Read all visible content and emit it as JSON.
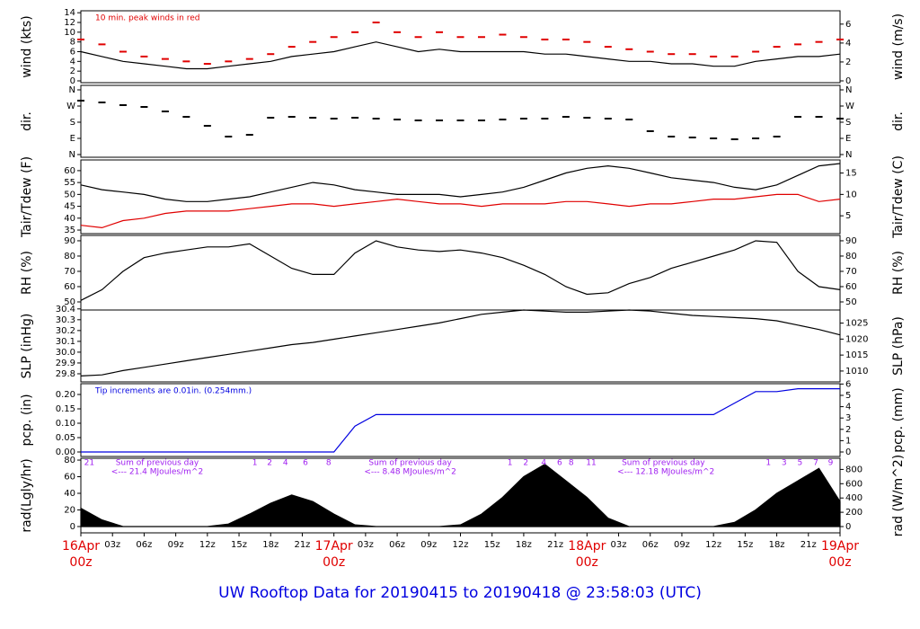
{
  "title": "UW Rooftop Data for 20190415  to  20190418 @ 23:58:03  (UTC)",
  "chart_data": [
    {
      "type": "line",
      "ylabel": "wind (kts)",
      "y2label": "wind (m/s)",
      "annotation": "10 min. peak winds in red",
      "annotation_color": "#e00000",
      "xlim": [
        0,
        72
      ],
      "x": [
        0,
        2,
        4,
        6,
        8,
        10,
        12,
        14,
        16,
        18,
        20,
        22,
        24,
        26,
        28,
        30,
        32,
        34,
        36,
        38,
        40,
        42,
        44,
        46,
        48,
        50,
        52,
        54,
        56,
        58,
        60,
        62,
        64,
        66,
        68,
        70,
        72
      ],
      "ylim": [
        -0.37,
        14.4
      ],
      "yticks": [
        0,
        2,
        4,
        6,
        8,
        10,
        12,
        14
      ],
      "y2lim": [
        -0.19,
        7.41
      ],
      "y2ticks": [
        0,
        2,
        4,
        6
      ],
      "series": [
        {
          "color": "#000000",
          "values": [
            6,
            5,
            4,
            3.5,
            3,
            2.5,
            2.5,
            3,
            3.5,
            4,
            5,
            5.5,
            6,
            7,
            8,
            7,
            6,
            6.5,
            6,
            6,
            6,
            6,
            5.5,
            5.5,
            5,
            4.5,
            4,
            4,
            3.5,
            3.5,
            3,
            3,
            4,
            4.5,
            5,
            5,
            5.5
          ]
        },
        {
          "color": "#e00000",
          "marker": "dash",
          "values": [
            8.5,
            7.5,
            6,
            5,
            4.5,
            4,
            3.5,
            4,
            4.5,
            5.5,
            7,
            8,
            9,
            10,
            12,
            10,
            9,
            10,
            9,
            9,
            9.5,
            9,
            8.5,
            8.5,
            8,
            7,
            6.5,
            6,
            5.5,
            5.5,
            5,
            5,
            6,
            7,
            7.5,
            8,
            8.5
          ]
        }
      ]
    },
    {
      "type": "scatter",
      "ylabel": "dir.",
      "y2label": "dir.",
      "xlim": [
        0,
        72
      ],
      "x": [
        0,
        2,
        4,
        6,
        8,
        10,
        12,
        14,
        16,
        18,
        20,
        22,
        24,
        26,
        28,
        30,
        32,
        34,
        36,
        38,
        40,
        42,
        44,
        46,
        48,
        50,
        52,
        54,
        56,
        58,
        60,
        62,
        64,
        66,
        68,
        70,
        72
      ],
      "ylim": [
        -15,
        385
      ],
      "yticks": [
        {
          "value": 0,
          "label": "N"
        },
        {
          "value": 90,
          "label": "E"
        },
        {
          "value": 180,
          "label": "S"
        },
        {
          "value": 270,
          "label": "W"
        },
        {
          "value": 360,
          "label": "N"
        }
      ],
      "series": [
        {
          "color": "#000000",
          "marker": "dash",
          "values": [
            300,
            290,
            275,
            265,
            240,
            210,
            160,
            100,
            110,
            205,
            210,
            205,
            200,
            205,
            200,
            195,
            190,
            190,
            190,
            190,
            195,
            200,
            200,
            210,
            205,
            200,
            195,
            130,
            100,
            95,
            90,
            85,
            90,
            100,
            210,
            210,
            200
          ]
        }
      ]
    },
    {
      "type": "line",
      "ylabel": "Tair/Tdew (F)",
      "y2label": "Tair/Tdew (C)",
      "xlim": [
        0,
        72
      ],
      "x": [
        0,
        2,
        4,
        6,
        8,
        10,
        12,
        14,
        16,
        18,
        20,
        22,
        24,
        26,
        28,
        30,
        32,
        34,
        36,
        38,
        40,
        42,
        44,
        46,
        48,
        50,
        52,
        54,
        56,
        58,
        60,
        62,
        64,
        66,
        68,
        70,
        72
      ],
      "ylim": [
        33.5,
        64.5
      ],
      "yticks": [
        35,
        40,
        45,
        50,
        55,
        60
      ],
      "y2lim": [
        0.83,
        18.06
      ],
      "y2ticks": [
        5,
        10,
        15
      ],
      "series": [
        {
          "color": "#000000",
          "values": [
            54,
            52,
            51,
            50,
            48,
            47,
            47,
            48,
            49,
            51,
            53,
            55,
            54,
            52,
            51,
            50,
            50,
            50,
            49,
            50,
            51,
            53,
            56,
            59,
            61,
            62,
            61,
            59,
            57,
            56,
            55,
            53,
            52,
            54,
            58,
            62,
            63
          ]
        },
        {
          "color": "#e00000",
          "values": [
            37,
            36,
            39,
            40,
            42,
            43,
            43,
            43,
            44,
            45,
            46,
            46,
            45,
            46,
            47,
            48,
            47,
            46,
            46,
            45,
            46,
            46,
            46,
            47,
            47,
            46,
            45,
            46,
            46,
            47,
            48,
            48,
            49,
            50,
            50,
            47,
            48
          ]
        }
      ]
    },
    {
      "type": "line",
      "ylabel": "RH (%)",
      "y2label": "RH (%)",
      "xlim": [
        0,
        72
      ],
      "x": [
        0,
        2,
        4,
        6,
        8,
        10,
        12,
        14,
        16,
        18,
        20,
        22,
        24,
        26,
        28,
        30,
        32,
        34,
        36,
        38,
        40,
        42,
        44,
        46,
        48,
        50,
        52,
        54,
        56,
        58,
        60,
        62,
        64,
        66,
        68,
        70,
        72
      ],
      "ylim": [
        44.7,
        93.5
      ],
      "yticks": [
        50,
        60,
        70,
        80,
        90
      ],
      "series": [
        {
          "color": "#000000",
          "values": [
            51,
            58,
            70,
            79,
            82,
            84,
            86,
            86,
            88,
            80,
            72,
            68,
            68,
            82,
            90,
            86,
            84,
            83,
            84,
            82,
            79,
            74,
            68,
            60,
            55,
            56,
            62,
            66,
            72,
            76,
            80,
            84,
            90,
            89,
            70,
            60,
            58
          ]
        }
      ]
    },
    {
      "type": "line",
      "ylabel": "SLP (inHg)",
      "y2label": "SLP (hPa)",
      "xlim": [
        0,
        72
      ],
      "x": [
        0,
        2,
        4,
        6,
        8,
        10,
        12,
        14,
        16,
        18,
        20,
        22,
        24,
        26,
        28,
        30,
        32,
        34,
        36,
        38,
        40,
        42,
        44,
        46,
        48,
        50,
        52,
        54,
        56,
        58,
        60,
        62,
        64,
        66,
        68,
        70,
        72
      ],
      "ylim": [
        29.725,
        30.39
      ],
      "yticks": [
        29.8,
        29.9,
        {
          "value": 30,
          "label": "30.0"
        },
        30.1,
        30.2,
        30.3,
        30.4
      ],
      "y2lim": [
        1006.6,
        1029.1
      ],
      "y2ticks": [
        1010,
        1015,
        1020,
        1025
      ],
      "series": [
        {
          "color": "#000000",
          "values": [
            29.78,
            29.79,
            29.83,
            29.86,
            29.89,
            29.92,
            29.95,
            29.98,
            30.01,
            30.04,
            30.07,
            30.09,
            30.12,
            30.15,
            30.18,
            30.21,
            30.24,
            30.27,
            30.31,
            30.35,
            30.37,
            30.39,
            30.38,
            30.37,
            30.37,
            30.38,
            30.39,
            30.38,
            30.36,
            30.34,
            30.33,
            30.32,
            30.31,
            30.29,
            30.25,
            30.21,
            30.16
          ]
        }
      ]
    },
    {
      "type": "line",
      "ylabel": "pcp. (in)",
      "y2label": "pcp. (mm)",
      "annotation": "Tip increments are 0.01in. (0.254mm.)",
      "annotation_color": "#0000e0",
      "xlim": [
        0,
        72
      ],
      "x": [
        0,
        2,
        4,
        6,
        8,
        10,
        12,
        14,
        16,
        18,
        20,
        22,
        24,
        26,
        28,
        30,
        32,
        34,
        36,
        38,
        40,
        42,
        44,
        46,
        48,
        50,
        52,
        54,
        56,
        58,
        60,
        62,
        64,
        66,
        68,
        70,
        72
      ],
      "ylim": [
        -0.0156,
        0.2375
      ],
      "yticks": [
        {
          "value": 0,
          "label": "0.00"
        },
        {
          "value": 0.05,
          "label": "0.05"
        },
        {
          "value": 0.1,
          "label": "0.10"
        },
        {
          "value": 0.15,
          "label": "0.15"
        },
        {
          "value": 0.2,
          "label": "0.20"
        }
      ],
      "y2lim": [
        -0.397,
        6.03
      ],
      "y2ticks": [
        0,
        1,
        2,
        3,
        4,
        5,
        6
      ],
      "series": [
        {
          "color": "#0000e0",
          "values": [
            0,
            0,
            0,
            0,
            0,
            0,
            0,
            0,
            0,
            0,
            0,
            0,
            0,
            0.09,
            0.13,
            0.13,
            0.13,
            0.13,
            0.13,
            0.13,
            0.13,
            0.13,
            0.13,
            0.13,
            0.13,
            0.13,
            0.13,
            0.13,
            0.13,
            0.13,
            0.13,
            0.17,
            0.21,
            0.21,
            0.22,
            0.22,
            0.22
          ]
        }
      ]
    },
    {
      "type": "area",
      "ylabel": "rad(Lgly/hr)",
      "y2label": "rad (W/m^2)",
      "xlim": [
        0,
        72
      ],
      "x": [
        0,
        2,
        4,
        6,
        8,
        10,
        12,
        14,
        16,
        18,
        20,
        22,
        24,
        26,
        28,
        30,
        32,
        34,
        36,
        38,
        40,
        42,
        44,
        46,
        48,
        50,
        52,
        54,
        56,
        58,
        60,
        62,
        64,
        66,
        68,
        70,
        72
      ],
      "ylim": [
        -7.6,
        82.2
      ],
      "yticks": [
        0,
        20,
        40,
        60,
        80
      ],
      "y2lim": [
        -88,
        956
      ],
      "y2ticks": [
        0,
        200,
        400,
        600,
        800
      ],
      "series": [
        {
          "color": "#000000",
          "values": [
            22,
            8,
            0,
            0,
            0,
            0,
            0,
            3,
            15,
            28,
            38,
            30,
            15,
            2,
            0,
            0,
            0,
            0,
            2,
            15,
            35,
            60,
            75,
            55,
            35,
            10,
            0,
            0,
            0,
            0,
            0,
            5,
            20,
            40,
            55,
            70,
            30
          ]
        }
      ],
      "sum_labels": [
        [
          "Sum of previous day",
          "<--- 21.4 MJoules/m^2"
        ],
        [
          "Sum of previous day",
          "<--- 8.48 MJoules/m^2"
        ],
        [
          "Sum of previous day",
          "<--- 12.18 MJoules/m^2"
        ]
      ],
      "hour_marks": [
        {
          "value": 0.8,
          "label": "21"
        },
        {
          "value": 16.5,
          "label": "1"
        },
        {
          "value": 17.9,
          "label": "2"
        },
        {
          "value": 19.4,
          "label": "4"
        },
        {
          "value": 21.3,
          "label": "6"
        },
        {
          "value": 23.5,
          "label": "8"
        },
        {
          "value": 40.7,
          "label": "1"
        },
        {
          "value": 42.2,
          "label": "2"
        },
        {
          "value": 43.9,
          "label": "4"
        },
        {
          "value": 45.4,
          "label": "6"
        },
        {
          "value": 46.5,
          "label": "8"
        },
        {
          "value": 48.4,
          "label": "11"
        },
        {
          "value": 65.2,
          "label": "1"
        },
        {
          "value": 66.7,
          "label": "3"
        },
        {
          "value": 68.2,
          "label": "5"
        },
        {
          "value": 69.7,
          "label": "7"
        },
        {
          "value": 71.1,
          "label": "9"
        }
      ],
      "xticks": [
        {
          "value": 0,
          "label": "00z"
        },
        {
          "value": 3,
          "label": "03z"
        },
        {
          "value": 6,
          "label": "06z"
        },
        {
          "value": 9,
          "label": "09z"
        },
        {
          "value": 12,
          "label": "12z"
        },
        {
          "value": 15,
          "label": "15z"
        },
        {
          "value": 18,
          "label": "18z"
        },
        {
          "value": 21,
          "label": "21z"
        },
        {
          "value": 24,
          "label": "00z"
        },
        {
          "value": 27,
          "label": "03z"
        },
        {
          "value": 30,
          "label": "06z"
        },
        {
          "value": 33,
          "label": "09z"
        },
        {
          "value": 36,
          "label": "12z"
        },
        {
          "value": 39,
          "label": "15z"
        },
        {
          "value": 42,
          "label": "18z"
        },
        {
          "value": 45,
          "label": "21z"
        },
        {
          "value": 48,
          "label": "00z"
        },
        {
          "value": 51,
          "label": "03z"
        },
        {
          "value": 54,
          "label": "06z"
        },
        {
          "value": 57,
          "label": "09z"
        },
        {
          "value": 60,
          "label": "12z"
        },
        {
          "value": 63,
          "label": "15z"
        },
        {
          "value": 66,
          "label": "18z"
        },
        {
          "value": 69,
          "label": "21z"
        },
        {
          "value": 72,
          "label": "00z"
        }
      ],
      "date_labels": [
        {
          "value": 0,
          "label": "16Apr"
        },
        {
          "value": 24,
          "label": "17Apr"
        },
        {
          "value": 48,
          "label": "18Apr"
        },
        {
          "value": 72,
          "label": "19Apr"
        }
      ]
    }
  ]
}
